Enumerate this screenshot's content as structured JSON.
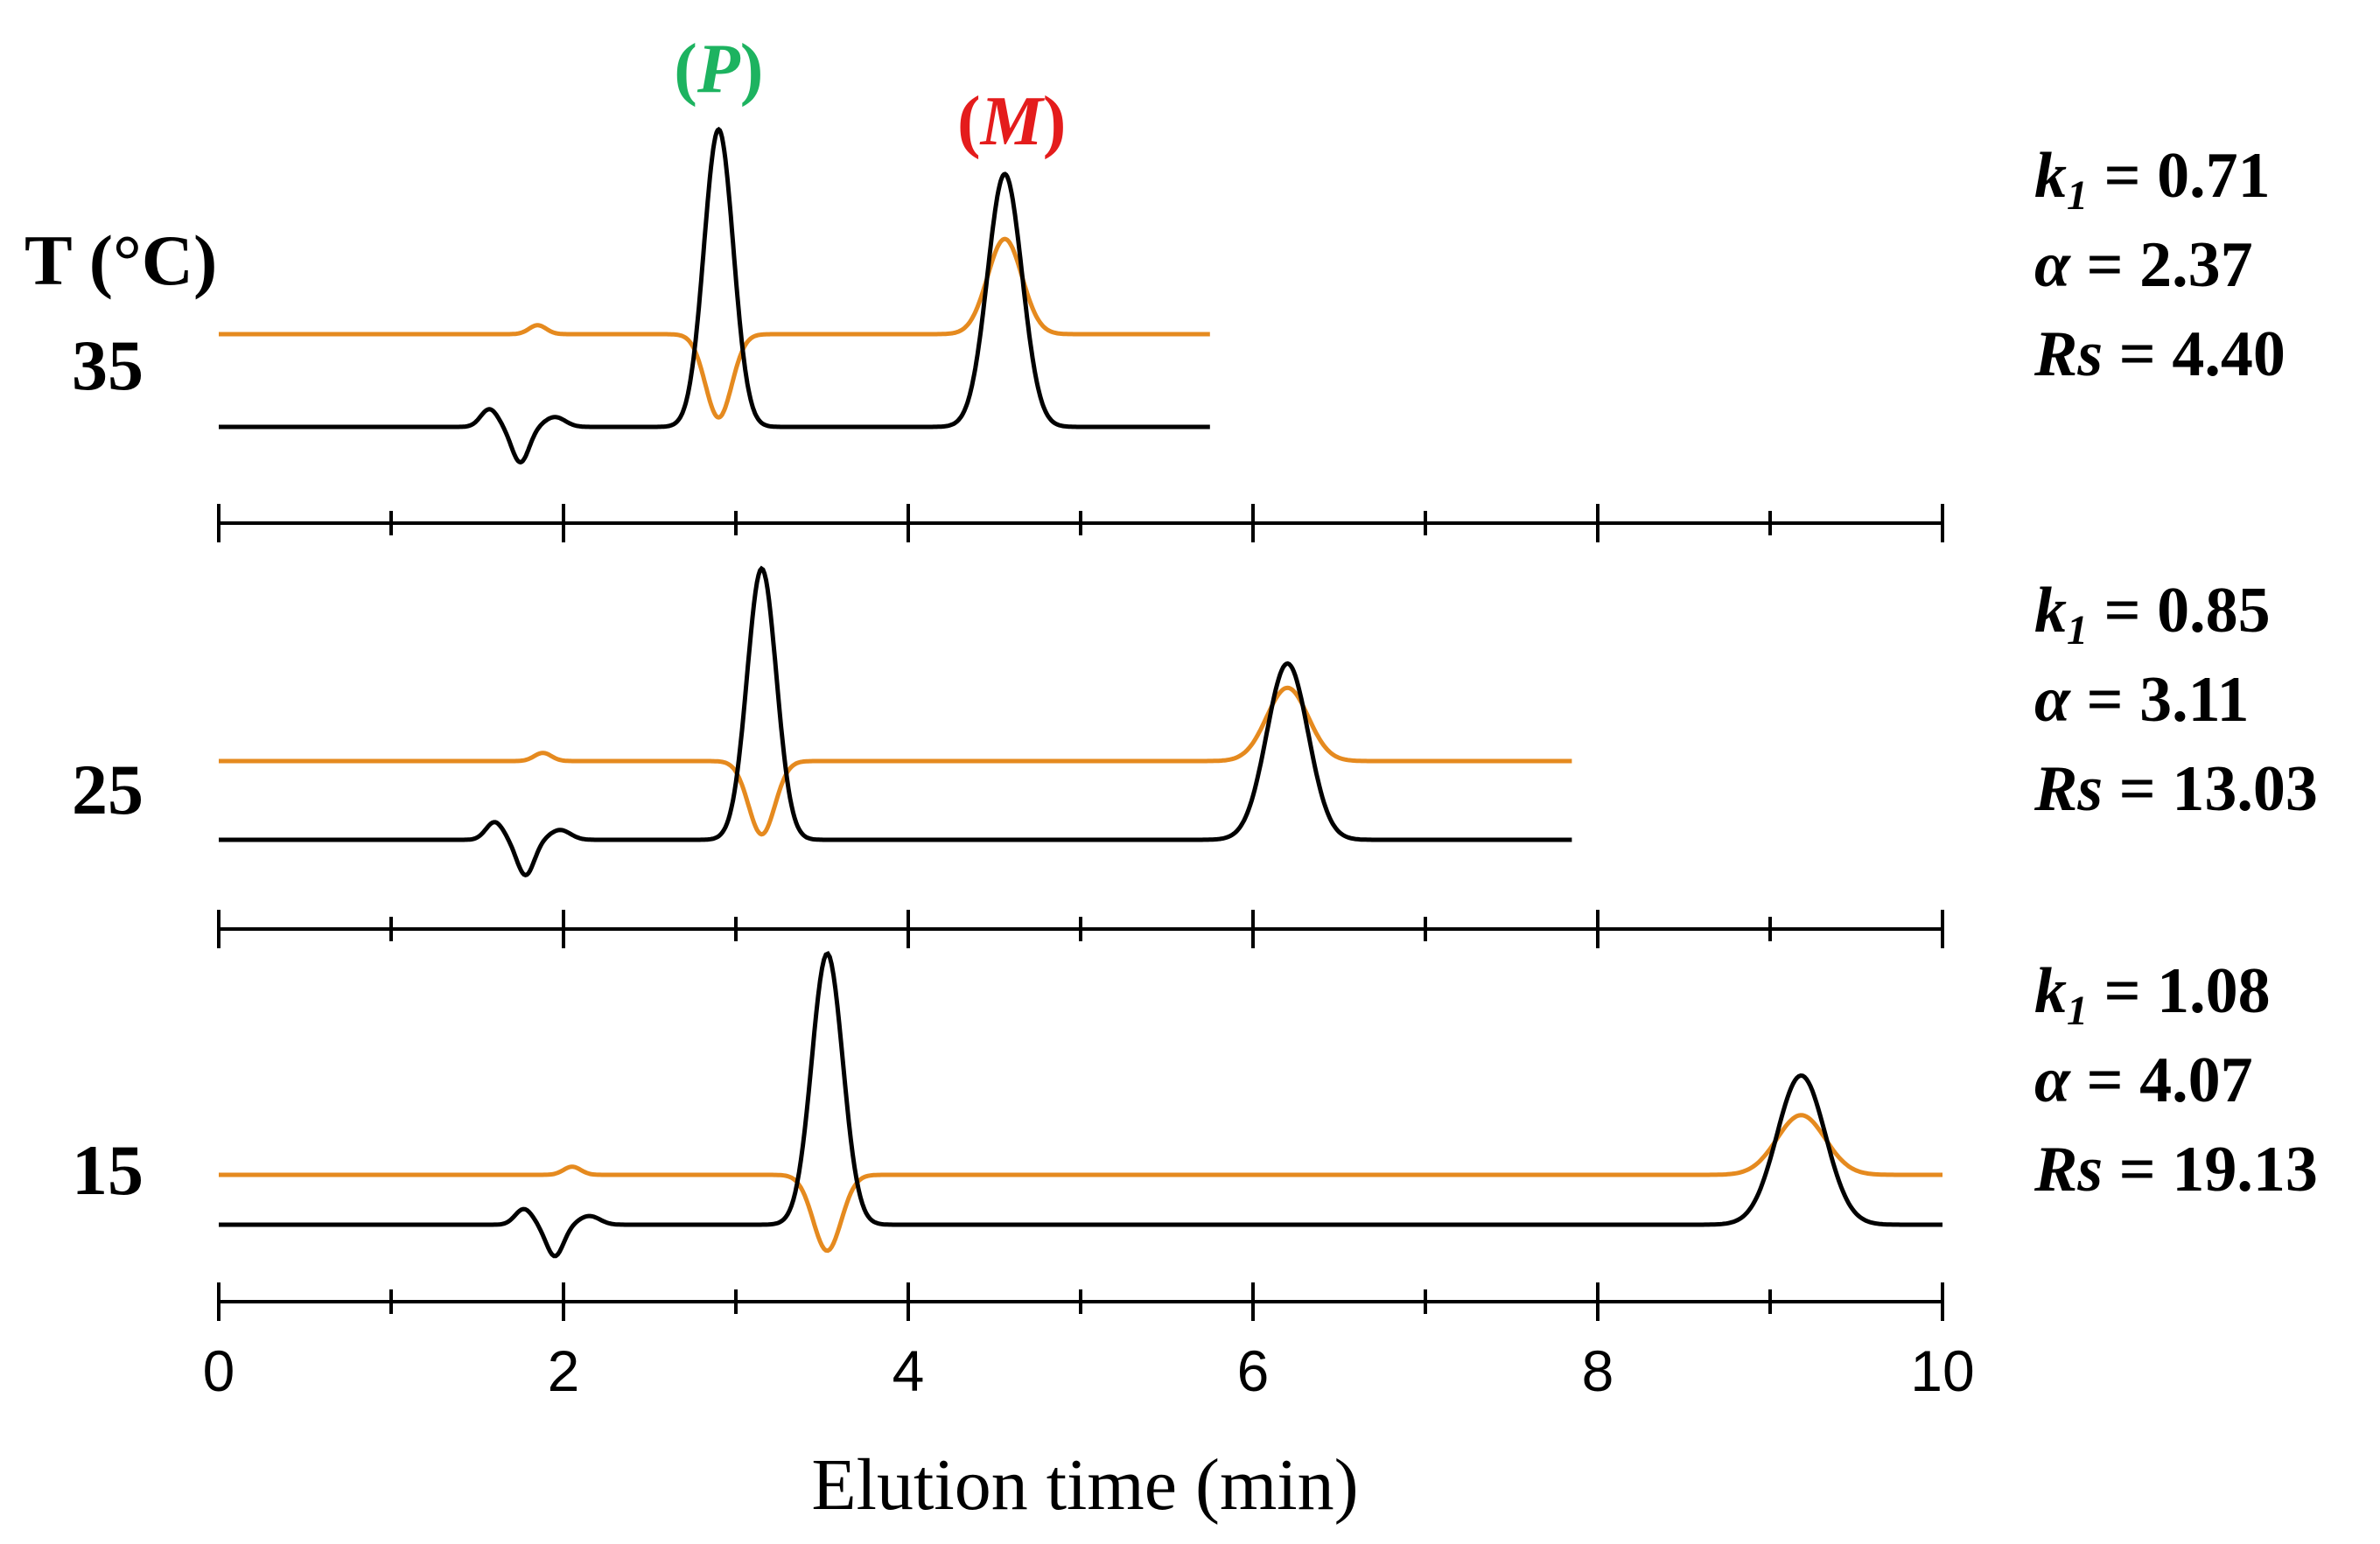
{
  "chart_data": {
    "type": "line",
    "title": "",
    "xlabel": "Elution time (min)",
    "ylabel": "",
    "xlim": [
      0,
      10
    ],
    "x_ticks": [
      "0",
      "2",
      "4",
      "6",
      "8",
      "10"
    ],
    "temperature_header": "T (°C)",
    "peak_labels": [
      {
        "open": "(",
        "name": "P",
        "close": ")",
        "color": "#1db360",
        "x": 2.9
      },
      {
        "open": "(",
        "name": "M",
        "close": ")",
        "color": "#e41c1c",
        "x": 4.6
      }
    ],
    "series_colors": {
      "chromatogram": "#000000",
      "cd_signal": "#e58a1f"
    },
    "panels": [
      {
        "temperature": "35",
        "k1_symbol": "k",
        "k1_sub": "1",
        "k1_value": " = 0.71",
        "alpha_symbol": "α",
        "alpha_value": " = 2.37",
        "rs_symbol": "Rs",
        "rs_value": " = 4.40",
        "t_end": 5.75,
        "disturbance_t": 1.75,
        "peak_P": {
          "t": 2.9,
          "height": 1.0,
          "cd": -0.28,
          "width": 0.085
        },
        "peak_M": {
          "t": 4.56,
          "height": 0.85,
          "cd": 0.32,
          "width": 0.1
        }
      },
      {
        "temperature": "25",
        "k1_symbol": "k",
        "k1_sub": "1",
        "k1_value": " = 0.85",
        "alpha_symbol": "α",
        "alpha_value": " = 3.11",
        "rs_symbol": "Rs",
        "rs_value": " = 13.03",
        "t_end": 7.85,
        "disturbance_t": 1.78,
        "peak_P": {
          "t": 3.15,
          "height": 1.0,
          "cd": -0.27,
          "width": 0.085
        },
        "peak_M": {
          "t": 6.2,
          "height": 0.65,
          "cd": 0.27,
          "width": 0.12
        }
      },
      {
        "temperature": "15",
        "k1_symbol": "k",
        "k1_sub": "1",
        "k1_value": " = 1.08",
        "alpha_symbol": "α",
        "alpha_value": " = 4.07",
        "rs_symbol": "Rs",
        "rs_value": " = 19.13",
        "t_end": 10.0,
        "disturbance_t": 1.95,
        "peak_P": {
          "t": 3.53,
          "height": 1.0,
          "cd": -0.28,
          "width": 0.09
        },
        "peak_M": {
          "t": 9.18,
          "height": 0.55,
          "cd": 0.22,
          "width": 0.14
        }
      }
    ]
  }
}
